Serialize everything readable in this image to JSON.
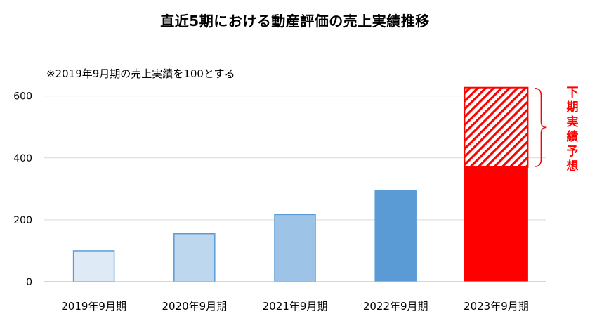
{
  "chart_data": {
    "type": "bar",
    "title": "直近5期における動産評価の売上実績推移",
    "note": "※2019年9月期の売上実績を100とする",
    "categories": [
      "2019年9月期",
      "2020年9月期",
      "2021年9月期",
      "2022年9月期",
      "2023年9月期"
    ],
    "series": [
      {
        "values": [
          100,
          155,
          217,
          295,
          370
        ]
      },
      {
        "name": "下期実績予想",
        "values": [
          0,
          0,
          0,
          0,
          257
        ]
      }
    ],
    "bar_colors": [
      "#deebf7",
      "#bdd7ee",
      "#9dc3e6",
      "#5b9bd5",
      "#ff0000"
    ],
    "forecast_color": "#ff0000",
    "ylim": [
      0,
      640
    ],
    "yticks": [
      0,
      200,
      400,
      600
    ],
    "grid": true,
    "annotation": {
      "text": "下期実績予想",
      "target": "2023年9月期",
      "side": "right"
    }
  }
}
